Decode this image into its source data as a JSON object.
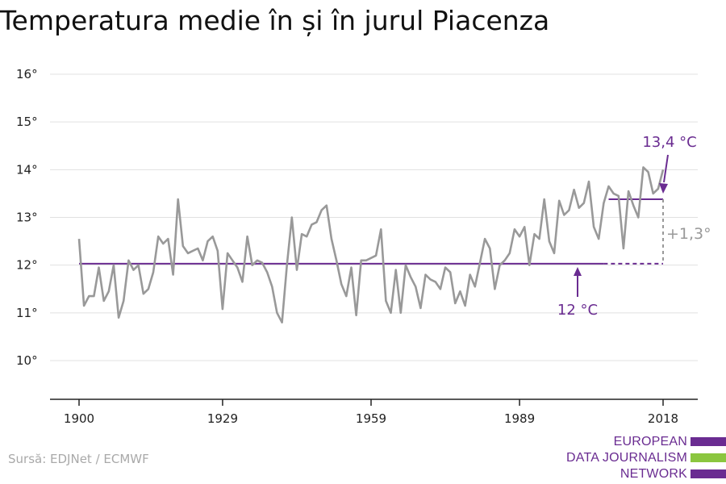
{
  "title": "Temperatura medie în și în jurul Piacenza",
  "source": "Sursă: EDJNet / ECMWF",
  "logo": {
    "lines": [
      "EUROPEAN",
      "DATA JOURNALISM",
      "NETWORK"
    ],
    "colors": {
      "bar1": "#6a2c91",
      "bar2": "#8bc63f",
      "bar3": "#6a2c91"
    }
  },
  "colors": {
    "series": "#999999",
    "average": "#6a2c91",
    "difference": "#999999",
    "grid": "#e1e1e1",
    "axis": "#222222"
  },
  "chart_data": {
    "type": "line",
    "title": "Temperatura medie în și în jurul Piacenza",
    "xlabel": "",
    "ylabel": "",
    "xlim": [
      1900,
      2018
    ],
    "ylim": [
      9.2,
      16.5
    ],
    "x_ticks": [
      1900,
      1929,
      1959,
      1989,
      2018
    ],
    "x_tick_labels": [
      "1900",
      "1929",
      "1959",
      "1989",
      "2018"
    ],
    "y_ticks": [
      10,
      11,
      12,
      13,
      14,
      15,
      16
    ],
    "y_tick_labels": [
      "10°",
      "11°",
      "12°",
      "13°",
      "14°",
      "15°",
      "16°"
    ],
    "grid": true,
    "series": [
      {
        "x": [
          1900,
          1901,
          1902,
          1903,
          1904,
          1905,
          1906,
          1907,
          1908,
          1909,
          1910,
          1911,
          1912,
          1913,
          1914,
          1915,
          1916,
          1917,
          1918,
          1919,
          1920,
          1921,
          1922,
          1923,
          1924,
          1925,
          1926,
          1927,
          1928,
          1929,
          1930,
          1931,
          1932,
          1933,
          1934,
          1935,
          1936,
          1937,
          1938,
          1939,
          1940,
          1941,
          1942,
          1943,
          1944,
          1945,
          1946,
          1947,
          1948,
          1949,
          1950,
          1951,
          1952,
          1953,
          1954,
          1955,
          1956,
          1957,
          1958,
          1959,
          1960,
          1961,
          1962,
          1963,
          1964,
          1965,
          1966,
          1967,
          1968,
          1969,
          1970,
          1971,
          1972,
          1973,
          1974,
          1975,
          1976,
          1977,
          1978,
          1979,
          1980,
          1981,
          1982,
          1983,
          1984,
          1985,
          1986,
          1987,
          1988,
          1989,
          1990,
          1991,
          1992,
          1993,
          1994,
          1995,
          1996,
          1997,
          1998,
          1999,
          2000,
          2001,
          2002,
          2003,
          2004,
          2005,
          2006,
          2007,
          2008,
          2009,
          2010,
          2011,
          2012,
          2013,
          2014,
          2015,
          2016,
          2017,
          2018
        ],
        "values": [
          12.55,
          11.15,
          11.35,
          11.35,
          11.95,
          11.25,
          11.45,
          12.0,
          10.9,
          11.25,
          12.1,
          11.9,
          12.0,
          11.4,
          11.5,
          11.85,
          12.6,
          12.45,
          12.55,
          11.8,
          13.38,
          12.4,
          12.25,
          12.3,
          12.35,
          12.1,
          12.5,
          12.6,
          12.3,
          11.08,
          12.25,
          12.1,
          11.95,
          11.65,
          12.6,
          12.0,
          12.1,
          12.05,
          11.85,
          11.55,
          11.0,
          10.8,
          12.0,
          13.0,
          11.9,
          12.65,
          12.6,
          12.85,
          12.9,
          13.15,
          13.25,
          12.55,
          12.1,
          11.6,
          11.35,
          11.95,
          10.95,
          12.1,
          12.1,
          12.15,
          12.2,
          12.75,
          11.25,
          11.0,
          11.9,
          11.0,
          12.0,
          11.75,
          11.55,
          11.1,
          11.8,
          11.7,
          11.65,
          11.5,
          11.95,
          11.85,
          11.2,
          11.45,
          11.15,
          11.8,
          11.55,
          12.05,
          12.55,
          12.35,
          11.5,
          12.0,
          12.1,
          12.25,
          12.75,
          12.6,
          12.8,
          12.0,
          12.65,
          12.55,
          13.38,
          12.5,
          12.25,
          13.35,
          13.05,
          13.15,
          13.58,
          13.2,
          13.3,
          13.75,
          12.8,
          12.55,
          13.3,
          13.65,
          13.5,
          13.45,
          12.35,
          13.55,
          13.25,
          13.0,
          14.05,
          13.95,
          13.5,
          13.6,
          14.0
        ]
      }
    ],
    "reference_lines": [
      {
        "label": "12 °C",
        "value": 12.03,
        "x_start": 1900,
        "x_solid_end": 2006,
        "x_end": 2018
      },
      {
        "label": "13,4 °C",
        "value": 13.38,
        "x_start": 2007,
        "x_end": 2018
      }
    ],
    "annotations": [
      {
        "text": "+1,3°",
        "x": 2018,
        "from": 12.03,
        "to": 13.38
      }
    ]
  }
}
